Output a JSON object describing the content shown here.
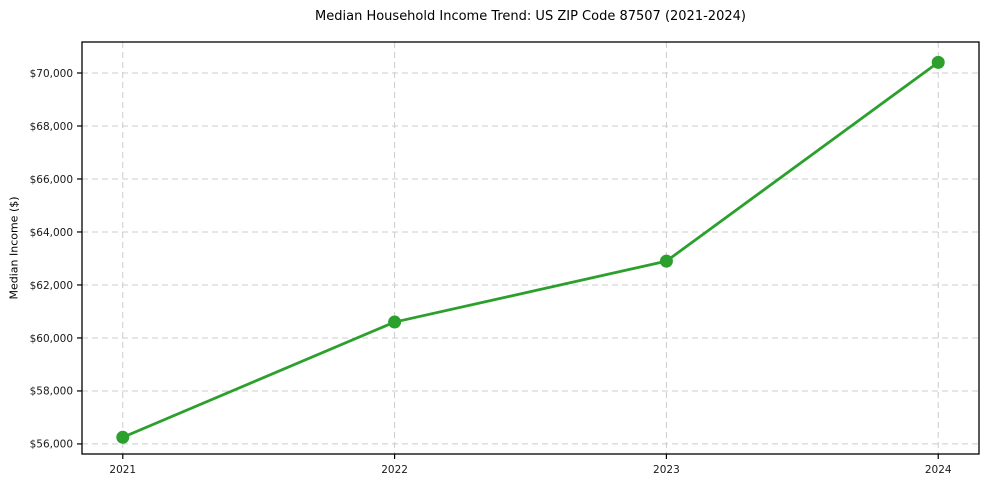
{
  "page": {
    "background": "#ffffff"
  },
  "chart_data": {
    "type": "line",
    "title": "Median Household Income Trend: US ZIP Code 87507 (2021-2024)",
    "xlabel": "",
    "ylabel": "Median Income ($)",
    "x": [
      2021,
      2022,
      2023,
      2024
    ],
    "series": [
      {
        "name": "Median household income",
        "values": [
          56250,
          60600,
          62900,
          70400
        ],
        "color": "#2ca02c",
        "marker": "circle",
        "line_width": 2.8,
        "marker_radius": 6.5
      }
    ],
    "x_tick_labels": [
      "2021",
      "2022",
      "2023",
      "2024"
    ],
    "y_tick_values": [
      56000,
      58000,
      60000,
      62000,
      64000,
      66000,
      68000,
      70000
    ],
    "y_tick_labels": [
      "$56,000",
      "$58,000",
      "$60,000",
      "$62,000",
      "$64,000",
      "$66,000",
      "$68,000",
      "$70,000"
    ],
    "xlim": [
      2020.85,
      2024.15
    ],
    "ylim": [
      55620,
      71170
    ],
    "grid": true,
    "grid_color": "#cccccc",
    "grid_dash": "6,4",
    "axis_color": "#000000",
    "text_color": "#1a1a1a",
    "legend_position": "none"
  }
}
